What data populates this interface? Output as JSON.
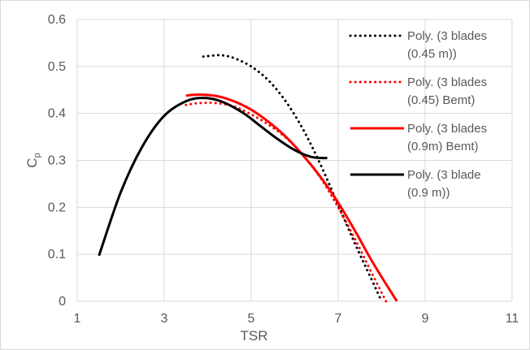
{
  "chart_data": {
    "type": "line",
    "title": "",
    "xlabel": "TSR",
    "ylabel": "C",
    "ylabel_subscript": "p",
    "xlim": [
      1,
      11
    ],
    "ylim": [
      0,
      0.6
    ],
    "xticks": [
      "1",
      "3",
      "5",
      "7",
      "9",
      "11"
    ],
    "yticks": [
      "0",
      "0.1",
      "0.2",
      "0.3",
      "0.4",
      "0.5",
      "0.6"
    ],
    "grid": true,
    "legend_position": "right",
    "series": [
      {
        "name": "Poly. (3 blades (0.45 m))",
        "legend_lines": [
          "Poly. (3 blades",
          "(0.45 m))"
        ],
        "color": "#000000",
        "dash": "dotted",
        "x": [
          3.9,
          4.0,
          4.3,
          4.6,
          5.0,
          5.4,
          5.8,
          6.2,
          6.6,
          7.0,
          7.4,
          7.7,
          8.0
        ],
        "y": [
          0.521,
          0.522,
          0.524,
          0.518,
          0.5,
          0.47,
          0.425,
          0.365,
          0.29,
          0.205,
          0.12,
          0.06,
          0.0
        ]
      },
      {
        "name": "Poly. (3 blades (0.45) Bemt)",
        "legend_lines": [
          "Poly. (3 blades",
          "(0.45) Bemt)"
        ],
        "color": "#ff0000",
        "dash": "dotted",
        "x": [
          3.5,
          3.8,
          4.2,
          4.6,
          5.0,
          5.4,
          5.8,
          6.2,
          6.6,
          7.0,
          7.4,
          7.8,
          8.1
        ],
        "y": [
          0.418,
          0.422,
          0.422,
          0.415,
          0.398,
          0.376,
          0.348,
          0.31,
          0.262,
          0.2,
          0.13,
          0.055,
          0.0
        ]
      },
      {
        "name": "Poly. (3 blades (0.9m) Bemt)",
        "legend_lines": [
          "Poly. (3 blades",
          "(0.9m) Bemt)"
        ],
        "color": "#ff0000",
        "dash": "solid",
        "x": [
          3.5,
          3.8,
          4.2,
          4.6,
          5.0,
          5.4,
          5.8,
          6.2,
          6.6,
          7.0,
          7.4,
          7.8,
          8.35
        ],
        "y": [
          0.438,
          0.44,
          0.437,
          0.426,
          0.408,
          0.382,
          0.35,
          0.31,
          0.264,
          0.21,
          0.148,
          0.082,
          0.0
        ]
      },
      {
        "name": "Poly. (3 blade (0.9 m))",
        "legend_lines": [
          "Poly. (3 blade",
          "(0.9 m))"
        ],
        "color": "#000000",
        "dash": "solid",
        "x": [
          1.5,
          2.0,
          2.5,
          3.0,
          3.5,
          3.9,
          4.3,
          4.8,
          5.2,
          5.6,
          6.0,
          6.4,
          6.75
        ],
        "y": [
          0.097,
          0.232,
          0.33,
          0.395,
          0.426,
          0.433,
          0.426,
          0.402,
          0.374,
          0.346,
          0.322,
          0.307,
          0.305
        ]
      }
    ]
  }
}
